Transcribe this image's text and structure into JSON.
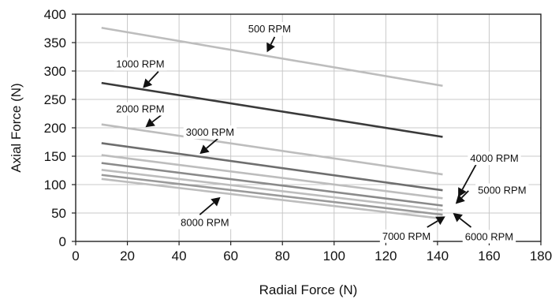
{
  "chart_data": {
    "type": "line",
    "xlabel": "Radial Force (N)",
    "ylabel": "Axial Force (N)",
    "xlim": [
      0,
      180
    ],
    "ylim": [
      0,
      400
    ],
    "x_ticks": [
      0,
      20,
      40,
      60,
      80,
      100,
      120,
      140,
      160,
      180
    ],
    "y_ticks": [
      0,
      50,
      100,
      150,
      200,
      250,
      300,
      350,
      400
    ],
    "grid": true,
    "colors": {
      "light": "#bdbdbd",
      "dark": "#3a3a3a",
      "mid": "#6e6e6e"
    },
    "series": [
      {
        "name": "500 RPM",
        "color": "#bdbdbd",
        "x": [
          10,
          142
        ],
        "values": [
          376,
          274
        ]
      },
      {
        "name": "1000 RPM",
        "color": "#3a3a3a",
        "x": [
          10,
          142
        ],
        "values": [
          279,
          184
        ]
      },
      {
        "name": "2000 RPM",
        "color": "#bdbdbd",
        "x": [
          10,
          142
        ],
        "values": [
          206,
          118
        ]
      },
      {
        "name": "3000 RPM",
        "color": "#6e6e6e",
        "x": [
          10,
          142
        ],
        "values": [
          173,
          90
        ]
      },
      {
        "name": "4000 RPM",
        "color": "#bdbdbd",
        "x": [
          10,
          142
        ],
        "values": [
          152,
          76
        ]
      },
      {
        "name": "5000 RPM",
        "color": "#8a8a8a",
        "x": [
          10,
          142
        ],
        "values": [
          138,
          63
        ]
      },
      {
        "name": "6000 RPM",
        "color": "#bdbdbd",
        "x": [
          10,
          142
        ],
        "values": [
          126,
          55
        ]
      },
      {
        "name": "7000 RPM",
        "color": "#9a9a9a",
        "x": [
          10,
          142
        ],
        "values": [
          117,
          47
        ]
      },
      {
        "name": "8000 RPM",
        "color": "#bdbdbd",
        "x": [
          10,
          142
        ],
        "values": [
          110,
          40
        ]
      }
    ],
    "annotations": [
      {
        "label": "500 RPM",
        "series": "500 RPM",
        "text_x": 75,
        "text_y": 375,
        "arrow_from_x": 77,
        "arrow_from_y": 360,
        "arrow_to_x": 74,
        "arrow_to_y": 333
      },
      {
        "label": "1000 RPM",
        "series": "1000 RPM",
        "text_x": 25,
        "text_y": 313,
        "arrow_from_x": 32,
        "arrow_from_y": 299,
        "arrow_to_x": 26,
        "arrow_to_y": 270
      },
      {
        "label": "2000 RPM",
        "series": "2000 RPM",
        "text_x": 25,
        "text_y": 234,
        "arrow_from_x": 33,
        "arrow_from_y": 222,
        "arrow_to_x": 27,
        "arrow_to_y": 201
      },
      {
        "label": "3000 RPM",
        "series": "3000 RPM",
        "text_x": 52,
        "text_y": 193,
        "arrow_from_x": 55,
        "arrow_from_y": 181,
        "arrow_to_x": 48,
        "arrow_to_y": 154
      },
      {
        "label": "4000 RPM",
        "series": "4000 RPM",
        "text_x": 162,
        "text_y": 147,
        "arrow_from_x": 155,
        "arrow_from_y": 136,
        "arrow_to_x": 148,
        "arrow_to_y": 78
      },
      {
        "label": "5000 RPM",
        "series": "5000 RPM",
        "text_x": 165,
        "text_y": 91,
        "arrow_from_x": 152,
        "arrow_from_y": 89,
        "arrow_to_x": 147,
        "arrow_to_y": 66
      },
      {
        "label": "6000 RPM",
        "series": "6000 RPM",
        "text_x": 160,
        "text_y": 9,
        "arrow_from_x": 153,
        "arrow_from_y": 25,
        "arrow_to_x": 146,
        "arrow_to_y": 50
      },
      {
        "label": "7000 RPM",
        "series": "7000 RPM",
        "text_x": 128,
        "text_y": 10,
        "arrow_from_x": 136,
        "arrow_from_y": 25,
        "arrow_to_x": 143,
        "arrow_to_y": 44
      },
      {
        "label": "8000 RPM",
        "series": "8000 RPM",
        "text_x": 50,
        "text_y": 34,
        "arrow_from_x": 48,
        "arrow_from_y": 47,
        "arrow_to_x": 56,
        "arrow_to_y": 78
      }
    ]
  }
}
